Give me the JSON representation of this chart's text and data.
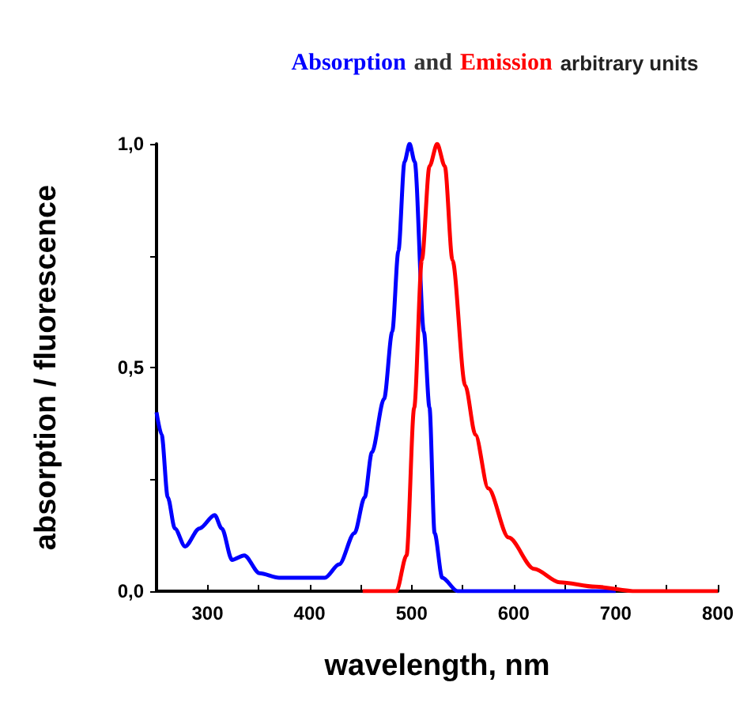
{
  "chart_data": {
    "type": "line",
    "annotations": [
      "and",
      "arbitrary units"
    ],
    "xlabel": "wavelength, nm",
    "ylabel": "absorption / fluorescence",
    "xlim": [
      250,
      800
    ],
    "xticks": [
      {
        "value": 250,
        "label": null
      },
      300,
      {
        "value": 350,
        "label": null
      },
      400,
      {
        "value": 450,
        "label": null
      },
      500,
      {
        "value": 550,
        "label": null
      },
      600,
      {
        "value": 650,
        "label": null
      },
      700,
      {
        "value": 750,
        "label": null
      },
      800
    ],
    "ylim": [
      0,
      1
    ],
    "yticks": [
      {
        "value": 0,
        "label": "0,0"
      },
      {
        "value": 0.25,
        "label": null
      },
      {
        "value": 0.5,
        "label": "0,5"
      },
      {
        "value": 0.75,
        "label": null
      },
      {
        "value": 1,
        "label": "1,0"
      }
    ],
    "grid": false,
    "legend": false,
    "series": [
      {
        "name": "Absorption",
        "color": "#0000ff",
        "x": [
          250,
          255,
          261,
          268,
          278,
          292,
          307,
          314,
          324,
          336,
          351,
          370,
          400,
          415,
          429,
          444,
          454,
          461,
          473,
          481,
          487,
          493,
          498,
          503,
          512,
          517.5,
          522.5,
          530,
          545,
          600,
          700
        ],
        "values": [
          0.4,
          0.35,
          0.21,
          0.14,
          0.1,
          0.14,
          0.17,
          0.14,
          0.07,
          0.08,
          0.04,
          0.03,
          0.03,
          0.03,
          0.06,
          0.13,
          0.21,
          0.31,
          0.43,
          0.58,
          0.76,
          0.96,
          1.0,
          0.96,
          0.58,
          0.41,
          0.13,
          0.03,
          0.0,
          0.0,
          0.0
        ]
      },
      {
        "name": "Emission",
        "color": "#ff0000",
        "x": [
          452,
          485,
          495,
          502.5,
          510,
          517.5,
          525,
          532.5,
          540,
          552.5,
          562.5,
          575,
          595,
          620,
          645,
          680,
          720,
          800
        ],
        "values": [
          0.0,
          0.0,
          0.08,
          0.41,
          0.74,
          0.95,
          1.0,
          0.95,
          0.74,
          0.46,
          0.35,
          0.23,
          0.12,
          0.05,
          0.02,
          0.01,
          0.0,
          0.0
        ]
      }
    ]
  }
}
